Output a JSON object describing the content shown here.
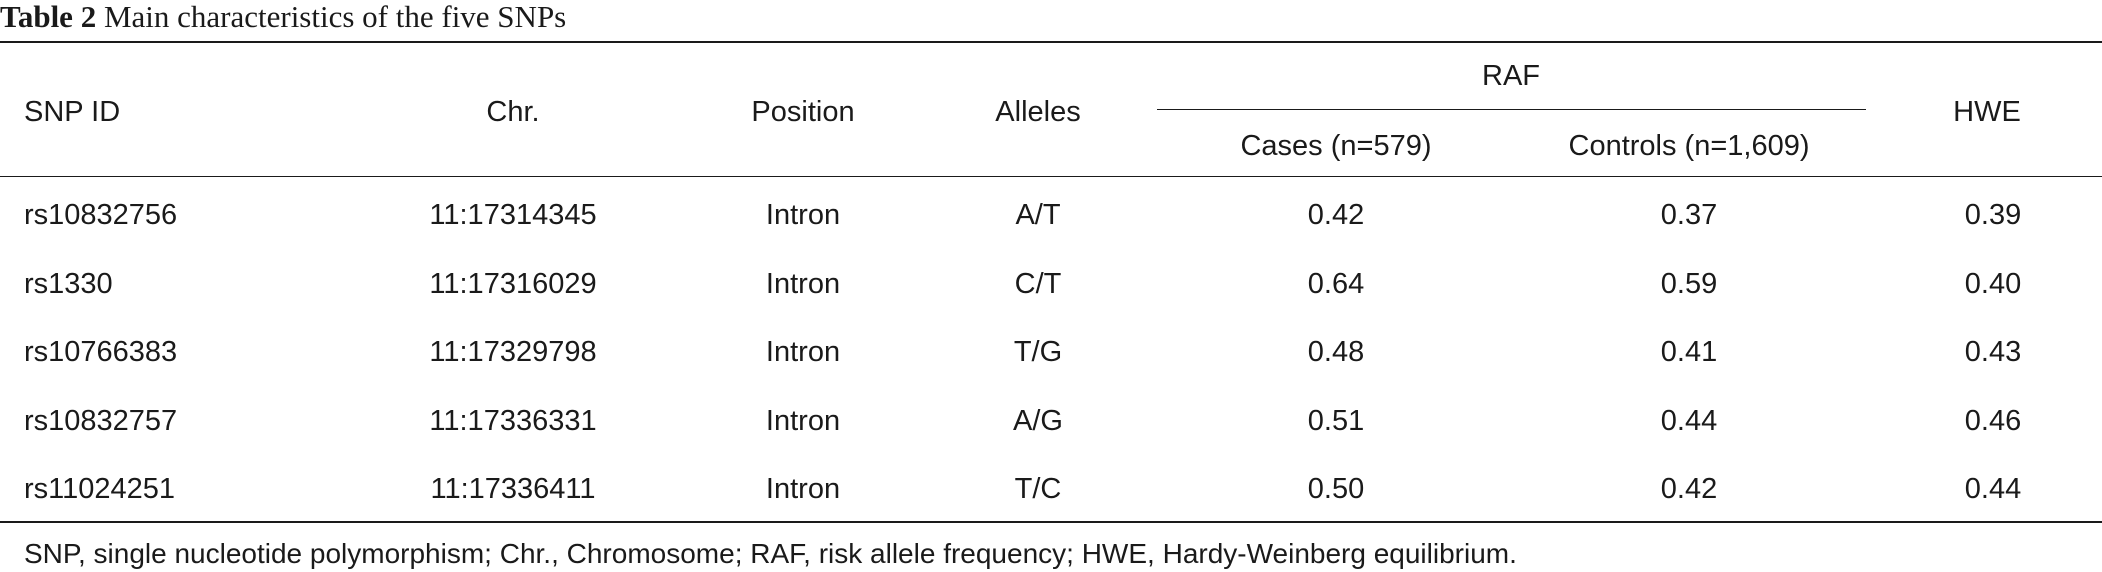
{
  "caption": {
    "label": "Table 2",
    "text": " Main characteristics of the five SNPs"
  },
  "table": {
    "headers": {
      "snp_id": "SNP ID",
      "chr": "Chr.",
      "position": "Position",
      "alleles": "Alleles",
      "raf": "RAF",
      "cases": "Cases (n=579)",
      "controls": "Controls (n=1,609)",
      "hwe": "HWE"
    },
    "rows": [
      {
        "snp_id": "rs10832756",
        "chr": "11:17314345",
        "position": "Intron",
        "alleles": "A/T",
        "cases": "0.42",
        "controls": "0.37",
        "hwe": "0.39"
      },
      {
        "snp_id": "rs1330",
        "chr": "11:17316029",
        "position": "Intron",
        "alleles": "C/T",
        "cases": "0.64",
        "controls": "0.59",
        "hwe": "0.40"
      },
      {
        "snp_id": "rs10766383",
        "chr": "11:17329798",
        "position": "Intron",
        "alleles": "T/G",
        "cases": "0.48",
        "controls": "0.41",
        "hwe": "0.43"
      },
      {
        "snp_id": "rs10832757",
        "chr": "11:17336331",
        "position": "Intron",
        "alleles": "A/G",
        "cases": "0.51",
        "controls": "0.44",
        "hwe": "0.46"
      },
      {
        "snp_id": "rs11024251",
        "chr": "11:17336411",
        "position": "Intron",
        "alleles": "T/C",
        "cases": "0.50",
        "controls": "0.42",
        "hwe": "0.44"
      }
    ]
  },
  "footnote": "SNP, single nucleotide polymorphism; Chr., Chromosome; RAF, risk allele frequency; HWE, Hardy-Weinberg equilibrium."
}
